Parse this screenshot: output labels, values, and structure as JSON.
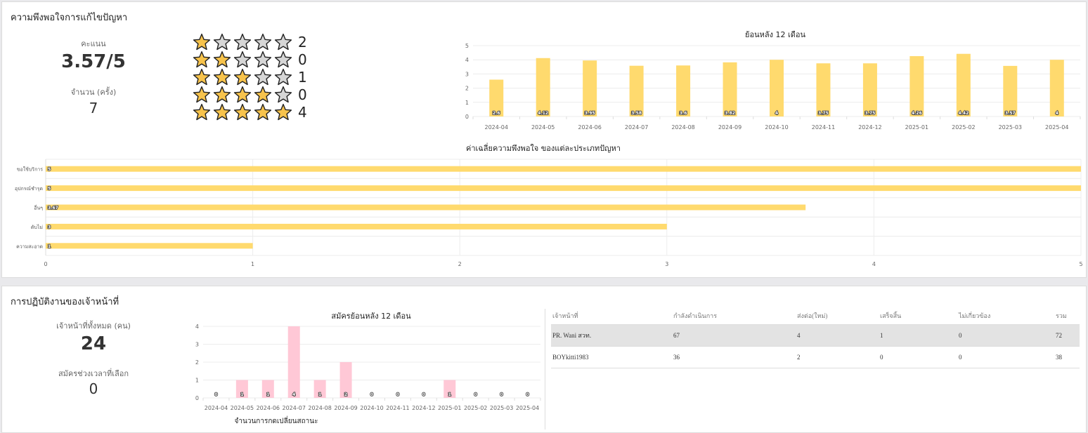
{
  "satisfaction": {
    "title": "ความพึงพอใจการแก้ไขปัญหา",
    "score_label": "คะแนน",
    "score_value": "3.57/5",
    "count_label": "จำนวน (ครั้ง)",
    "count_value": "7",
    "star_rows": [
      {
        "stars": 1,
        "count": "2"
      },
      {
        "stars": 2,
        "count": "0"
      },
      {
        "stars": 3,
        "count": "1"
      },
      {
        "stars": 4,
        "count": "0"
      },
      {
        "stars": 5,
        "count": "4"
      }
    ],
    "colors": {
      "star_filled": "#f7c34c",
      "star_empty": "#d6d6d6"
    }
  },
  "officers": {
    "title": "การปฏิบัติงานของเจ้าหน้าที่",
    "total_label": "เจ้าหน้าที่ทั้งหมด (คน)",
    "total_value": "24",
    "period_label": "สมัครช่วงเวลาที่เลือก",
    "period_value": "0",
    "table": {
      "headers": [
        "เจ้าหน้าที่",
        "กำลังดำเนินการ",
        "ส่งต่อ(ใหม่)",
        "เสร็จสิ้น",
        "ไม่เกี่ยวข้อง",
        "รวม"
      ],
      "rows": [
        [
          "PR. Wani สวท.",
          "67",
          "4",
          "1",
          "0",
          "72"
        ],
        [
          "BOYkitti1983",
          "36",
          "2",
          "0",
          "0",
          "38"
        ]
      ]
    }
  },
  "chart_data": [
    {
      "type": "bar",
      "title": "ย้อนหลัง 12 เดือน",
      "categories": [
        "2024-04",
        "2024-05",
        "2024-06",
        "2024-07",
        "2024-08",
        "2024-09",
        "2024-10",
        "2024-11",
        "2024-12",
        "2025-01",
        "2025-02",
        "2025-03",
        "2025-04"
      ],
      "values": [
        2.6,
        4.12,
        3.95,
        3.58,
        3.6,
        3.82,
        4,
        3.75,
        3.75,
        4.26,
        4.42,
        3.57,
        4
      ],
      "data_labels": [
        "2.6",
        "4.12",
        "3.95",
        "3.58",
        "3.6",
        "3.82",
        "4",
        "3.75",
        "3.75",
        "4.26",
        "4.42",
        "3.57",
        "4"
      ],
      "ylim": [
        0,
        5
      ],
      "yticks": [
        "0",
        "1",
        "2",
        "3",
        "4",
        "5"
      ],
      "color": "#ffda6e",
      "grid": true
    },
    {
      "type": "bar",
      "orientation": "horizontal",
      "title": "ค่าเฉลี่ยความพึงพอใจ ของแต่ละประเภทปัญหา",
      "categories": [
        "ขอใช้บริการ",
        "อุปกรณ์ชำรุด",
        "อื่นๆ",
        "ดับไม่",
        "ความสะอาด"
      ],
      "values": [
        5,
        5,
        3.67,
        3,
        1
      ],
      "data_labels": [
        "5",
        "5",
        "3.67",
        "3",
        "1"
      ],
      "xlim": [
        0,
        5
      ],
      "xticks": [
        "0",
        "1",
        "2",
        "3",
        "4",
        "5"
      ],
      "color": "#ffda6e",
      "grid": true
    },
    {
      "type": "bar",
      "title": "สมัครย้อนหลัง 12 เดือน",
      "xlabel": "จำนวนการกดเปลี่ยนสถานะ",
      "categories": [
        "2024-04",
        "2024-05",
        "2024-06",
        "2024-07",
        "2024-08",
        "2024-09",
        "2024-10",
        "2024-11",
        "2024-12",
        "2025-01",
        "2025-02",
        "2025-03",
        "2025-04"
      ],
      "values": [
        0,
        1,
        1,
        4,
        1,
        2,
        0,
        0,
        0,
        1,
        0,
        0,
        0
      ],
      "data_labels": [
        "0",
        "1",
        "1",
        "4",
        "1",
        "2",
        "0",
        "0",
        "0",
        "1",
        "0",
        "0",
        "0"
      ],
      "ylim": [
        0,
        4
      ],
      "yticks": [
        "0",
        "1",
        "2",
        "3",
        "4"
      ],
      "color": "#ffc8d6",
      "grid": true
    }
  ]
}
